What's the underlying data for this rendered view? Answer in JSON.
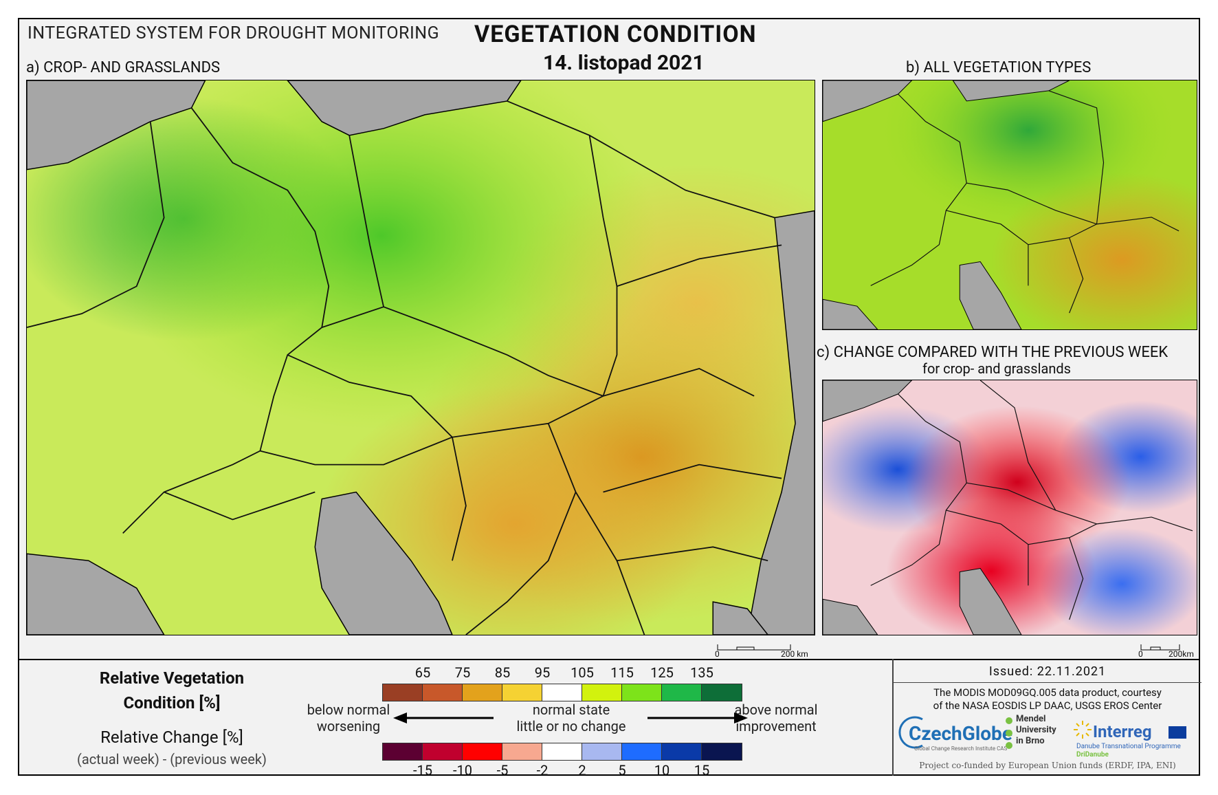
{
  "header": {
    "system_title": "INTEGRATED SYSTEM FOR DROUGHT MONITORING",
    "title": "VEGETATION CONDITION",
    "date": "14. listopad 2021"
  },
  "panels": {
    "a_label": "a) CROP- AND GRASSLANDS",
    "b_label": "b) ALL VEGETATION TYPES",
    "c_label": "c) CHANGE COMPARED WITH THE PREVIOUS WEEK",
    "c_sublabel": "for crop- and grasslands"
  },
  "scalebars": {
    "a": {
      "zero": "0",
      "end": "200 km"
    },
    "c": {
      "zero": "0",
      "end": "200km"
    }
  },
  "legend": {
    "title_line1": "Relative Vegetation",
    "title_line2": "Condition [%]",
    "change_title": "Relative Change [%]",
    "change_sub": "(actual week) - (previous week)",
    "condition_ticks": [
      "65",
      "75",
      "85",
      "95",
      "105",
      "115",
      "125",
      "135"
    ],
    "condition_colors": [
      "#9a3f24",
      "#c8582a",
      "#e3a21c",
      "#f5d233",
      "#ffffff",
      "#d2f20e",
      "#7de31a",
      "#1fb848",
      "#0e6e38"
    ],
    "change_ticks": [
      "-15",
      "-10",
      "-5",
      "-2",
      "2",
      "5",
      "10",
      "15"
    ],
    "change_colors": [
      "#5c0032",
      "#c0002e",
      "#ff0000",
      "#f7a890",
      "#ffffff",
      "#a8b8f0",
      "#1e6cff",
      "#0a3aa8",
      "#0a1550"
    ],
    "left_text_1": "below normal",
    "left_text_2": "worsening",
    "center_text_1": "normal state",
    "center_text_2": "little or no change",
    "right_text_1": "above normal",
    "right_text_2": "improvement"
  },
  "footer": {
    "issued": "Issued: 22.11.2021",
    "courtesy_1": "The MODIS MOD09GQ.005 data product, courtesy",
    "courtesy_2": "of the NASA EOSDIS LP DAAC, USGS EROS Center",
    "czechglobe": "CzechGlobe",
    "czechglobe_sub": "Global Change Research Institute CAS",
    "mendel_1": "Mendel",
    "mendel_2": "University",
    "mendel_3": "in Brno",
    "interreg": "Interreg",
    "interreg_sub": "Danube Transnational Programme",
    "dridanube": "DriDanube",
    "funded": "Project co-funded by European Union funds (ERDF, IPA, ENI)"
  }
}
